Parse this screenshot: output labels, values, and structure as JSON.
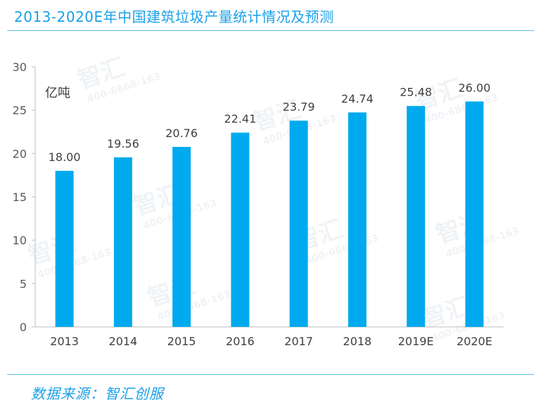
{
  "page_title": "2013-2020E年中国建筑垃圾产量统计情况及预测",
  "unit_label": "亿吨",
  "source_text": "数据来源：智汇创服",
  "watermark": {
    "brand": "智汇",
    "phone": "400-6868-163"
  },
  "colors": {
    "accent": "#1aa0e8",
    "bar": "#00aaee",
    "rule": "#5bbce8"
  },
  "chart_data": {
    "type": "bar",
    "title": "2013-2020E年中国建筑垃圾产量统计情况及预测",
    "xlabel": "",
    "ylabel": "亿吨",
    "categories": [
      "2013",
      "2014",
      "2015",
      "2016",
      "2017",
      "2018",
      "2019E",
      "2020E"
    ],
    "values": [
      18.0,
      19.56,
      20.76,
      22.41,
      23.79,
      24.74,
      25.48,
      26.0
    ],
    "data_labels": [
      "18.00",
      "19.56",
      "20.76",
      "22.41",
      "23.79",
      "24.74",
      "25.48",
      "26.00"
    ],
    "ylim": [
      0,
      30
    ],
    "yticks": [
      0,
      5,
      10,
      15,
      20,
      25,
      30
    ],
    "grid": false,
    "legend": "none"
  }
}
